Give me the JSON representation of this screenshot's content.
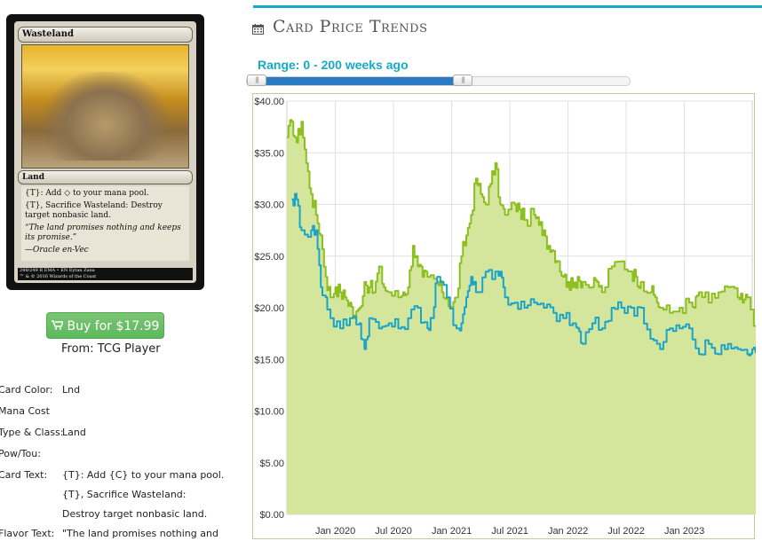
{
  "card": {
    "name": "Wasteland",
    "type_line": "Land",
    "rules_text_1": "{T}: Add ◇ to your mana pool.",
    "rules_text_2": "{T}, Sacrifice Wasteland: Destroy target nonbasic land.",
    "flavor_text": "“The land promises nothing and keeps its promise.”",
    "flavor_attribution": "—Oracle en-Vec",
    "footer_left": "248/249 R  EMA • EN  Eytan Zana",
    "footer_right": "™ & © 2016 Wizards of the Coast"
  },
  "buy": {
    "label": "Buy for $17.99",
    "from": "From: TCG Player"
  },
  "details": [
    {
      "key": "Card Color:",
      "value": "Lnd"
    },
    {
      "key": "Mana Cost",
      "value": ""
    },
    {
      "key": "Type & Class:",
      "value": "Land"
    },
    {
      "key": "Pow/Tou:",
      "value": ""
    },
    {
      "key": "Card Text:",
      "value": "{T}: Add {C} to your mana pool."
    },
    {
      "key": "",
      "value": "{T}, Sacrifice Wasteland:"
    },
    {
      "key": "",
      "value": "Destroy target nonbasic land."
    },
    {
      "key": "Flavor Text:",
      "value": "\"The land promises nothing and"
    }
  ],
  "header": {
    "title": "Card Price Trends",
    "icon": "calendar-icon"
  },
  "slider": {
    "label": "Range: 0 - 200 weeks ago",
    "min_weeks": 0,
    "max_weeks": 200,
    "range_color": "#2a7bc4"
  },
  "colors": {
    "accent": "#17a9c6",
    "buy_green": "#5cb85c",
    "series_green": "#8cbf1f",
    "series_blue": "#1ba3c9",
    "area_fill": "#d3e69c"
  },
  "chart_data": {
    "type": "line",
    "x_ticks": [
      "Jan 2020",
      "Jul 2020",
      "Jan 2021",
      "Jul 2021",
      "Jan 2022",
      "Jul 2022",
      "Jan 2023"
    ],
    "y_ticks": [
      "$0.00",
      "$5.00",
      "$10.00",
      "$15.00",
      "$20.00",
      "$25.00",
      "$30.00",
      "$35.00",
      "$40.00"
    ],
    "ylim": [
      0,
      40
    ],
    "xlim": [
      "2019-08",
      "2023-08"
    ],
    "grid": true,
    "legend": "none",
    "series": [
      {
        "fill": true,
        "color": "#8cbf1f",
        "points": [
          [
            "2019-08",
            36.5
          ],
          [
            "2019-08",
            38
          ],
          [
            "2019-09",
            36
          ],
          [
            "2019-09",
            38
          ],
          [
            "2019-10",
            34
          ],
          [
            "2019-10",
            31
          ],
          [
            "2019-11",
            29
          ],
          [
            "2019-11",
            27
          ],
          [
            "2019-12",
            23
          ],
          [
            "2019-12",
            21
          ],
          [
            "2020-01",
            22
          ],
          [
            "2020-01",
            21.5
          ],
          [
            "2020-02",
            21
          ],
          [
            "2020-02",
            20.5
          ],
          [
            "2020-03",
            19
          ],
          [
            "2020-03",
            20
          ],
          [
            "2020-04",
            22.5
          ],
          [
            "2020-04",
            22
          ],
          [
            "2020-05",
            21.5
          ],
          [
            "2020-05",
            24
          ],
          [
            "2020-06",
            22
          ],
          [
            "2020-06",
            21.5
          ],
          [
            "2020-07",
            21
          ],
          [
            "2020-08",
            21.5
          ],
          [
            "2020-08",
            22
          ],
          [
            "2020-09",
            26
          ],
          [
            "2020-09",
            24
          ],
          [
            "2020-10",
            23
          ],
          [
            "2020-10",
            23
          ],
          [
            "2020-11",
            22.5
          ],
          [
            "2020-12",
            21.5
          ],
          [
            "2020-12",
            21
          ],
          [
            "2021-01",
            20
          ],
          [
            "2021-01",
            21
          ],
          [
            "2021-02",
            25
          ],
          [
            "2021-02",
            27
          ],
          [
            "2021-03",
            29
          ],
          [
            "2021-03",
            32.5
          ],
          [
            "2021-04",
            31
          ],
          [
            "2021-04",
            30
          ],
          [
            "2021-05",
            32
          ],
          [
            "2021-05",
            34
          ],
          [
            "2021-06",
            30
          ],
          [
            "2021-06",
            29
          ],
          [
            "2021-07",
            30
          ],
          [
            "2021-08",
            29.5
          ],
          [
            "2021-08",
            28.5
          ],
          [
            "2021-09",
            29
          ],
          [
            "2021-10",
            28
          ],
          [
            "2021-10",
            27.5
          ],
          [
            "2021-11",
            26
          ],
          [
            "2021-11",
            25.5
          ],
          [
            "2021-12",
            24.5
          ],
          [
            "2021-12",
            23
          ],
          [
            "2022-01",
            22.5
          ],
          [
            "2022-01",
            22
          ],
          [
            "2022-02",
            23
          ],
          [
            "2022-02",
            22.5
          ],
          [
            "2022-03",
            22
          ],
          [
            "2022-04",
            22.5
          ],
          [
            "2022-04",
            21.5
          ],
          [
            "2022-05",
            24
          ],
          [
            "2022-06",
            24.5
          ],
          [
            "2022-07",
            23.5
          ],
          [
            "2022-08",
            23
          ],
          [
            "2022-08",
            22.5
          ],
          [
            "2022-09",
            21.5
          ],
          [
            "2022-10",
            21
          ],
          [
            "2022-10",
            20
          ],
          [
            "2022-11",
            19.5
          ],
          [
            "2022-12",
            20
          ],
          [
            "2023-01",
            20.5
          ],
          [
            "2023-02",
            20
          ],
          [
            "2023-02",
            21.5
          ],
          [
            "2023-03",
            20.5
          ],
          [
            "2023-04",
            21.5
          ],
          [
            "2023-05",
            22
          ],
          [
            "2023-06",
            21
          ],
          [
            "2023-07",
            20.5
          ],
          [
            "2023-07",
            21
          ],
          [
            "2023-08",
            18
          ]
        ]
      },
      {
        "fill": false,
        "color": "#1ba3c9",
        "points": [
          [
            "2019-08",
            30.5
          ],
          [
            "2019-09",
            30.5
          ],
          [
            "2019-09",
            27.5
          ],
          [
            "2019-10",
            27.5
          ],
          [
            "2019-11",
            27.5
          ],
          [
            "2019-11",
            22
          ],
          [
            "2019-12",
            21
          ],
          [
            "2019-12",
            19
          ],
          [
            "2020-01",
            18
          ],
          [
            "2020-02",
            19
          ],
          [
            "2020-03",
            18.5
          ],
          [
            "2020-04",
            16
          ],
          [
            "2020-04",
            19
          ],
          [
            "2020-05",
            18
          ],
          [
            "2020-06",
            18.5
          ],
          [
            "2020-07",
            18
          ],
          [
            "2020-08",
            19
          ],
          [
            "2020-09",
            20
          ],
          [
            "2020-10",
            18
          ],
          [
            "2020-11",
            19
          ],
          [
            "2020-11",
            23
          ],
          [
            "2020-12",
            21
          ],
          [
            "2021-01",
            18
          ],
          [
            "2021-02",
            18.5
          ],
          [
            "2021-02",
            21
          ],
          [
            "2021-03",
            23
          ],
          [
            "2021-03",
            21.5
          ],
          [
            "2021-04",
            23.5
          ],
          [
            "2021-05",
            23.5
          ],
          [
            "2021-06",
            23.5
          ],
          [
            "2021-06",
            21
          ],
          [
            "2021-07",
            20.5
          ],
          [
            "2021-08",
            20
          ],
          [
            "2021-09",
            20.5
          ],
          [
            "2021-10",
            20
          ],
          [
            "2021-11",
            19.5
          ],
          [
            "2021-12",
            19
          ],
          [
            "2022-01",
            18.5
          ],
          [
            "2022-02",
            18
          ],
          [
            "2022-02",
            16.5
          ],
          [
            "2022-03",
            18.5
          ],
          [
            "2022-04",
            18
          ],
          [
            "2022-05",
            20
          ],
          [
            "2022-06",
            20
          ],
          [
            "2022-07",
            20
          ],
          [
            "2022-08",
            20
          ],
          [
            "2022-09",
            17
          ],
          [
            "2022-10",
            16
          ],
          [
            "2022-11",
            18
          ],
          [
            "2022-12",
            18
          ],
          [
            "2023-01",
            18
          ],
          [
            "2023-02",
            15.5
          ],
          [
            "2023-03",
            16.5
          ],
          [
            "2023-04",
            15.5
          ],
          [
            "2023-05",
            16.5
          ],
          [
            "2023-06",
            16
          ],
          [
            "2023-07",
            15.5
          ],
          [
            "2023-08",
            16
          ],
          [
            "2023-08",
            15
          ]
        ]
      }
    ]
  }
}
